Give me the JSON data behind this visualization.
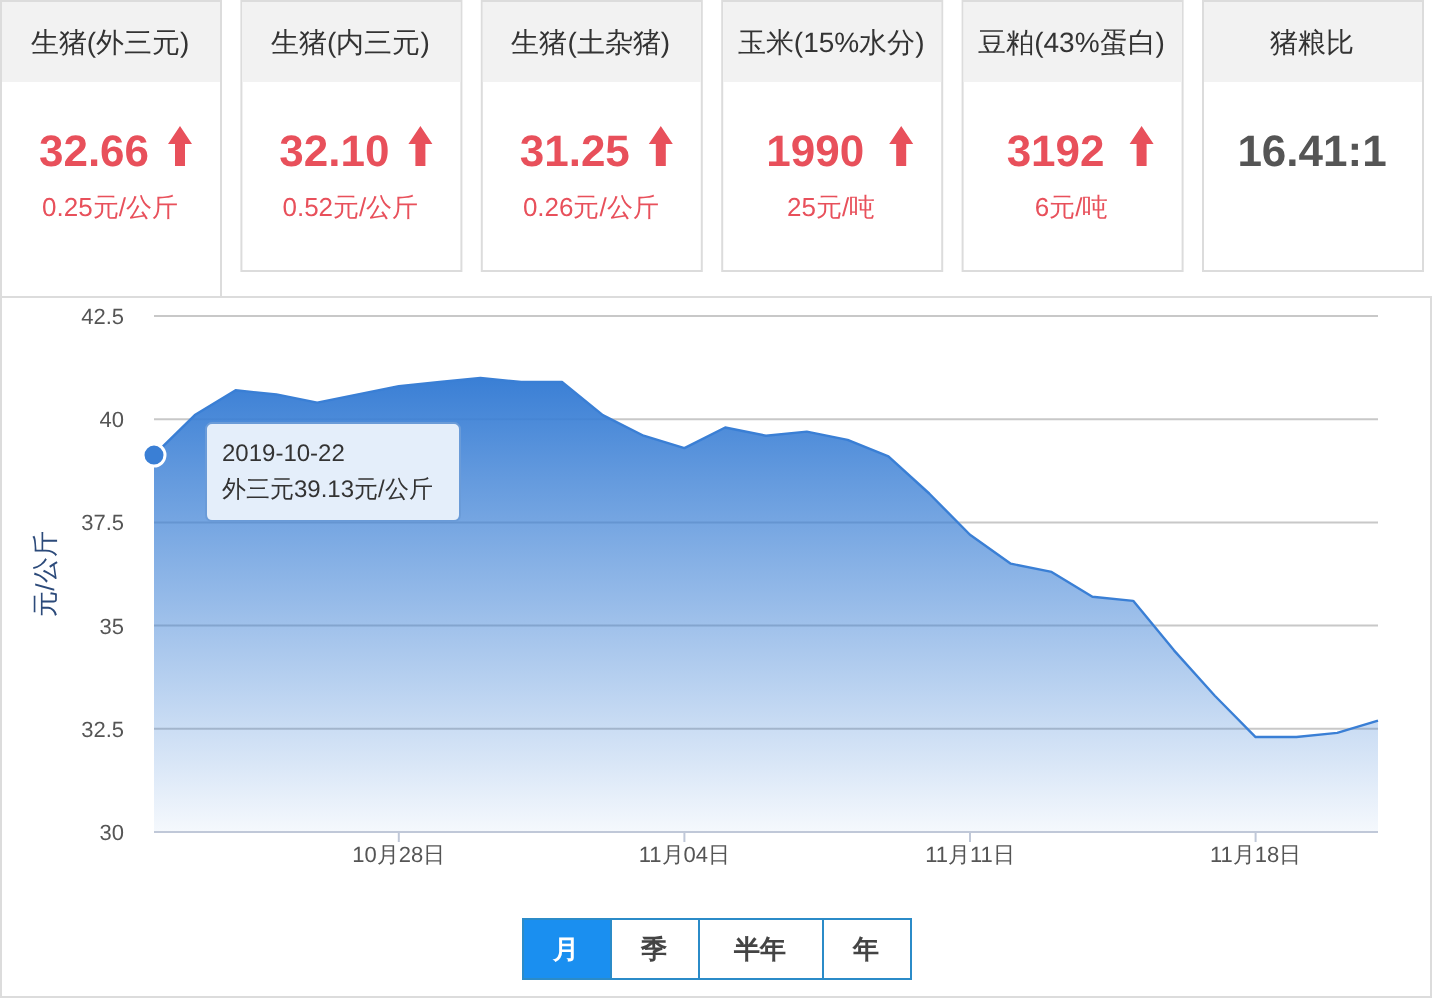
{
  "chart_data": [
    {
      "type": "other",
      "categories": [
        "生猪(外三元)",
        "生猪(内三元)",
        "生猪(土杂猪)",
        "玉米(15%水分)",
        "豆粕(43%蛋白)",
        "猪粮比"
      ],
      "value_labels": [
        "32.66",
        "32.10",
        "31.25",
        "1990",
        "3192",
        "16.41:1"
      ],
      "annotations": [
        "0.25元/公斤",
        "0.52元/公斤",
        "0.26元/公斤",
        "25元/吨",
        "6元/吨",
        null
      ]
    },
    {
      "type": "area",
      "ylabel": "元/公斤",
      "x": [
        "2019-10-22",
        "2019-10-23",
        "2019-10-24",
        "2019-10-25",
        "2019-10-26",
        "2019-10-27",
        "2019-10-28",
        "2019-10-29",
        "2019-10-30",
        "2019-10-31",
        "2019-11-01",
        "2019-11-02",
        "2019-11-03",
        "2019-11-04",
        "2019-11-05",
        "2019-11-06",
        "2019-11-07",
        "2019-11-08",
        "2019-11-09",
        "2019-11-10",
        "2019-11-11",
        "2019-11-12",
        "2019-11-13",
        "2019-11-14",
        "2019-11-15",
        "2019-11-16",
        "2019-11-17",
        "2019-11-18",
        "2019-11-19",
        "2019-11-20",
        "2019-11-21"
      ],
      "series": [
        {
          "color": "#3a7fd5",
          "values": [
            39.13,
            40.1,
            40.7,
            40.6,
            40.4,
            40.6,
            40.8,
            40.9,
            41.0,
            40.9,
            40.9,
            40.1,
            39.6,
            39.3,
            39.8,
            39.6,
            39.7,
            39.5,
            39.1,
            38.2,
            37.2,
            36.5,
            36.3,
            35.7,
            35.6,
            34.4,
            33.3,
            32.3,
            32.3,
            32.4,
            32.7
          ]
        }
      ],
      "xlim": [
        "2019-10-22",
        "2019-11-21"
      ],
      "xticks": [
        {
          "value": "2019-10-28",
          "label": "10月28日"
        },
        {
          "value": "2019-11-04",
          "label": "11月04日"
        },
        {
          "value": "2019-11-11",
          "label": "11月11日"
        },
        {
          "value": "2019-11-18",
          "label": "11月18日"
        }
      ],
      "ylim": [
        30,
        42.5
      ],
      "yticks": [
        30,
        32.5,
        35,
        37.5,
        40,
        42.5
      ],
      "grid": "y",
      "annotations": [
        {
          "text": "2019-10-22\n外三元39.13元/公斤",
          "x": "2019-10-22",
          "y": 39.13
        },
        "月",
        "季",
        "半年",
        "年"
      ]
    }
  ]
}
